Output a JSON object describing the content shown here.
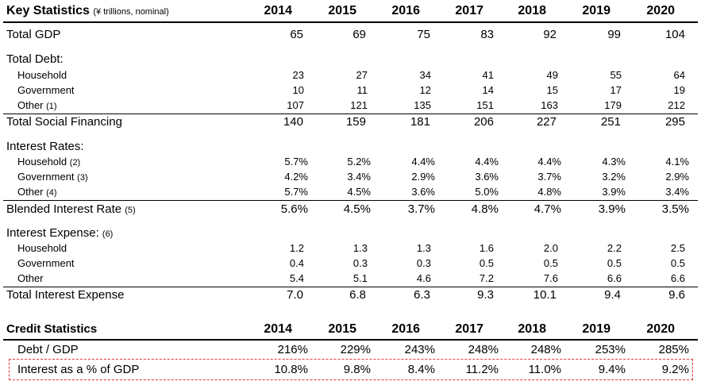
{
  "key_stats": {
    "title": "Key Statistics",
    "subtitle": "(¥ trillions, nominal)",
    "years": [
      "2014",
      "2015",
      "2016",
      "2017",
      "2018",
      "2019",
      "2020"
    ]
  },
  "total_gdp": {
    "label": "Total GDP",
    "values": [
      "65",
      "69",
      "75",
      "83",
      "92",
      "99",
      "104"
    ]
  },
  "total_debt": {
    "label": "Total Debt:",
    "household": {
      "label": "Household",
      "values": [
        "23",
        "27",
        "34",
        "41",
        "49",
        "55",
        "64"
      ]
    },
    "government": {
      "label": "Government",
      "values": [
        "10",
        "11",
        "12",
        "14",
        "15",
        "17",
        "19"
      ]
    },
    "other": {
      "label": "Other",
      "note": "(1)",
      "values": [
        "107",
        "121",
        "135",
        "151",
        "163",
        "179",
        "212"
      ]
    }
  },
  "total_social_financing": {
    "label": "Total Social Financing",
    "values": [
      "140",
      "159",
      "181",
      "206",
      "227",
      "251",
      "295"
    ]
  },
  "interest_rates": {
    "label": "Interest Rates:",
    "household": {
      "label": "Household",
      "note": "(2)",
      "values": [
        "5.7%",
        "5.2%",
        "4.4%",
        "4.4%",
        "4.4%",
        "4.3%",
        "4.1%"
      ]
    },
    "government": {
      "label": "Government",
      "note": "(3)",
      "values": [
        "4.2%",
        "3.4%",
        "2.9%",
        "3.6%",
        "3.7%",
        "3.2%",
        "2.9%"
      ]
    },
    "other": {
      "label": "Other",
      "note": "(4)",
      "values": [
        "5.7%",
        "4.5%",
        "3.6%",
        "5.0%",
        "4.8%",
        "3.9%",
        "3.4%"
      ]
    }
  },
  "blended_rate": {
    "label": "Blended Interest Rate",
    "note": "(5)",
    "values": [
      "5.6%",
      "4.5%",
      "3.7%",
      "4.8%",
      "4.7%",
      "3.9%",
      "3.5%"
    ]
  },
  "interest_expense": {
    "label": "Interest Expense:",
    "note": "(6)",
    "household": {
      "label": "Household",
      "values": [
        "1.2",
        "1.3",
        "1.3",
        "1.6",
        "2.0",
        "2.2",
        "2.5"
      ]
    },
    "government": {
      "label": "Government",
      "values": [
        "0.4",
        "0.3",
        "0.3",
        "0.5",
        "0.5",
        "0.5",
        "0.5"
      ]
    },
    "other": {
      "label": "Other",
      "values": [
        "5.4",
        "5.1",
        "4.6",
        "7.2",
        "7.6",
        "6.6",
        "6.6"
      ]
    }
  },
  "total_interest_expense": {
    "label": "Total Interest Expense",
    "values": [
      "7.0",
      "6.8",
      "6.3",
      "9.3",
      "10.1",
      "9.4",
      "9.6"
    ]
  },
  "credit_stats": {
    "title": "Credit Statistics",
    "years": [
      "2014",
      "2015",
      "2016",
      "2017",
      "2018",
      "2019",
      "2020"
    ],
    "debt_gdp": {
      "label": "Debt / GDP",
      "values": [
        "216%",
        "229%",
        "243%",
        "248%",
        "248%",
        "253%",
        "285%"
      ]
    },
    "interest_gdp": {
      "label": "Interest as a % of GDP",
      "values": [
        "10.8%",
        "9.8%",
        "8.4%",
        "11.2%",
        "11.0%",
        "9.4%",
        "9.2%"
      ]
    }
  },
  "highlight_color": "#e8393a"
}
